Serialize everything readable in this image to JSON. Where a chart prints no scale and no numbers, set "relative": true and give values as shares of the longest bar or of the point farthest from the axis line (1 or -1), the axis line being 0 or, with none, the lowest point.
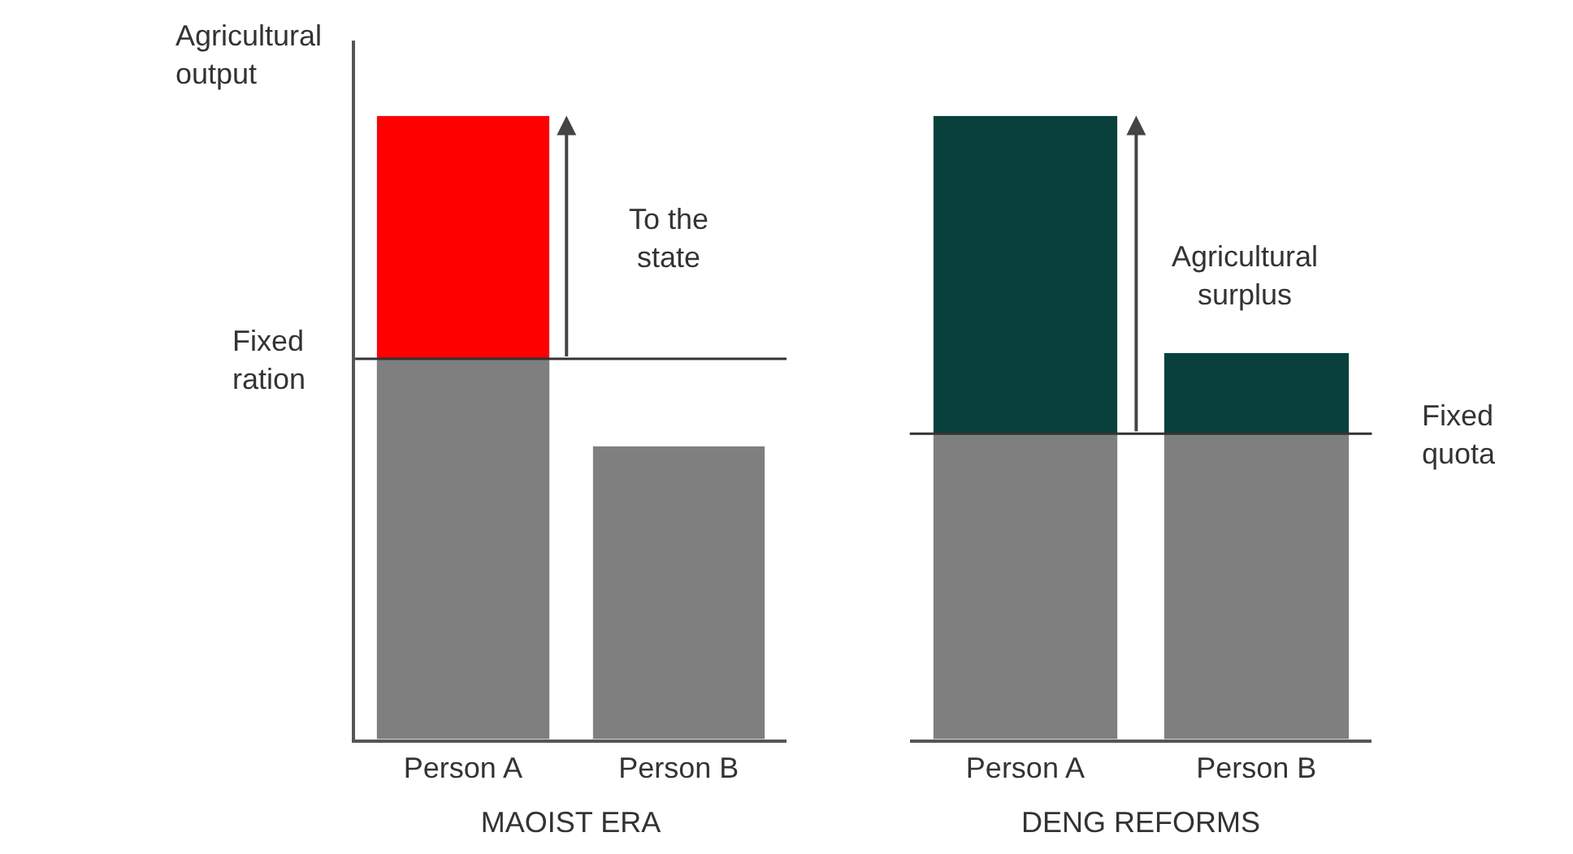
{
  "chart_data": [
    {
      "type": "bar",
      "stacked": true,
      "relative": true,
      "ylabel": "Agricultural\noutput",
      "xlabel": "MAOIST ERA",
      "categories": [
        "Person A",
        "Person B"
      ],
      "series": [
        {
          "color": "#7f7f7f",
          "values": [
            0.61,
            0.47
          ]
        },
        {
          "color": "#ff0000",
          "values": [
            0.39,
            null
          ]
        }
      ],
      "ref_lines": [
        {
          "axis": "y",
          "value": 0.61,
          "label": "Fixed\nration"
        }
      ],
      "annotations": [
        "To the\nstate"
      ]
    },
    {
      "type": "bar",
      "stacked": true,
      "relative": true,
      "xlabel": "DENG REFORMS",
      "categories": [
        "Person A",
        "Person B"
      ],
      "series": [
        {
          "color": "#7f7f7f",
          "values": [
            0.49,
            0.49
          ]
        },
        {
          "color": "#0a403b",
          "values": [
            0.51,
            0.13
          ]
        }
      ],
      "ref_lines": [
        {
          "axis": "y",
          "value": 0.49,
          "label": "Fixed\nquota"
        }
      ],
      "annotations": [
        "Agricultural\nsurplus"
      ]
    }
  ]
}
